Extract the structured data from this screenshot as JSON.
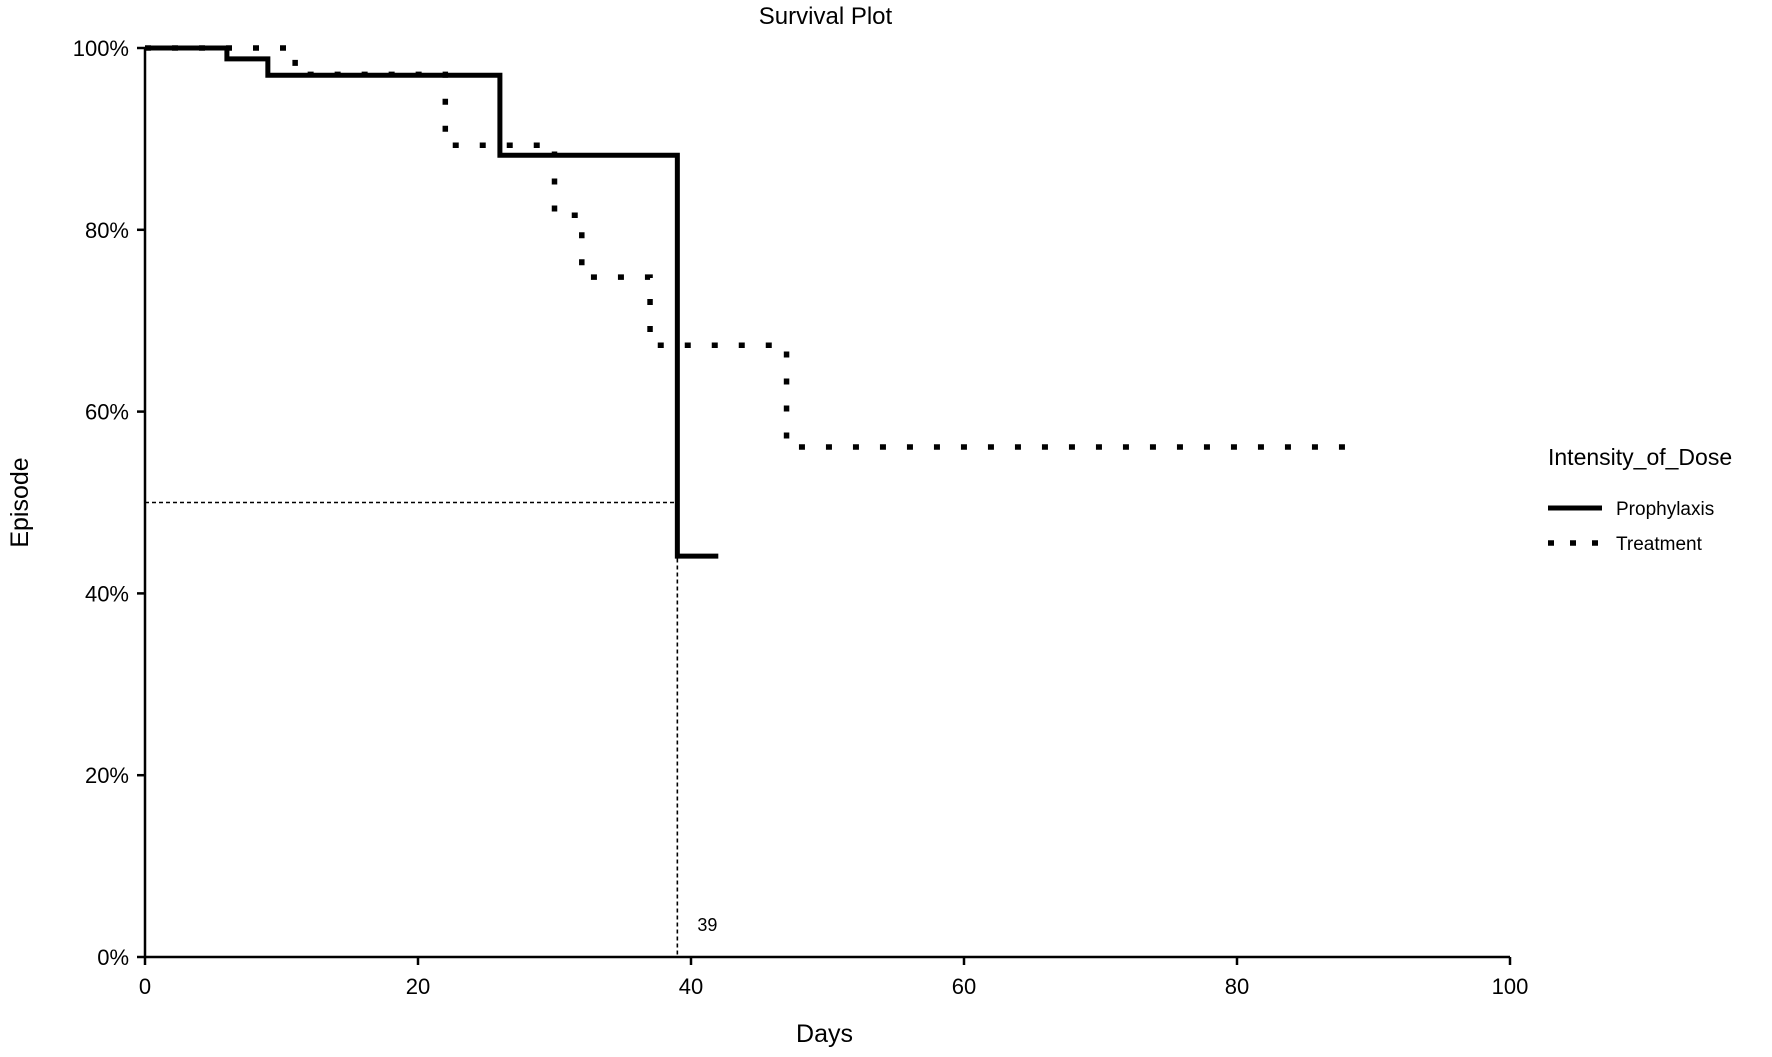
{
  "chart_data": {
    "type": "line",
    "title": "Survival Plot",
    "xlabel": "Days",
    "ylabel": "Episode",
    "xlim": [
      0,
      100
    ],
    "ylim": [
      0,
      100
    ],
    "x_ticks": [
      0,
      20,
      40,
      60,
      80,
      100
    ],
    "y_ticks": [
      0,
      20,
      40,
      60,
      80,
      100
    ],
    "x_tick_labels": [
      "0",
      "20",
      "40",
      "60",
      "80",
      "100"
    ],
    "y_tick_labels": [
      "0%",
      "20%",
      "40%",
      "60%",
      "80%",
      "100%"
    ],
    "y_unit": "percent",
    "grid": false,
    "legend": {
      "title": "Intensity_of_Dose",
      "placement": "right"
    },
    "step_style": "post",
    "series": [
      {
        "name": "Prophylaxis",
        "line_style": "solid",
        "color": "#000000",
        "x": [
          0,
          6,
          9,
          26,
          39,
          42
        ],
        "y": [
          100,
          98.8,
          97,
          88.2,
          44.1,
          44.1
        ]
      },
      {
        "name": "Treatment",
        "line_style": "dotted",
        "color": "#000000",
        "x": [
          0,
          11,
          22,
          30,
          32,
          37,
          47,
          89
        ],
        "y": [
          100,
          97.1,
          89.3,
          81.6,
          74.8,
          67.3,
          56.1,
          56.1
        ]
      }
    ],
    "reference_lines": {
      "median_level": 50,
      "median_x": 39
    },
    "annotations": [
      {
        "text": "39",
        "x": 39,
        "y": 0
      }
    ]
  }
}
